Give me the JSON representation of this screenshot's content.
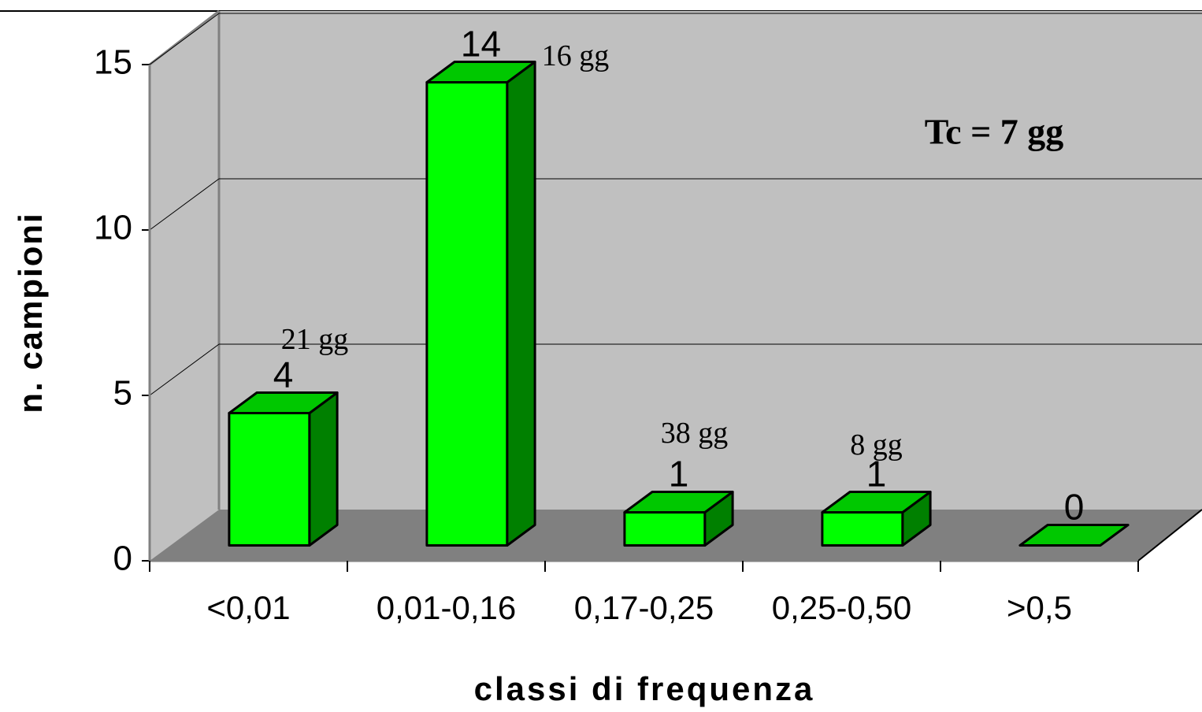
{
  "chart_data": {
    "type": "bar3d",
    "categories": [
      "<0,01",
      "0,01-0,16",
      "0,17-0,25",
      "0,25-0,50",
      ">0,5"
    ],
    "values": [
      4,
      14,
      1,
      1,
      0
    ],
    "bar_notes": [
      "21 gg",
      "16 gg",
      "38 gg",
      "8 gg",
      null
    ],
    "note": "Tc = 7 gg",
    "xlabel": "classi di frequenza",
    "ylabel": "n. campioni",
    "ylim": [
      0,
      15
    ],
    "yticks": [
      0,
      5,
      10,
      15
    ],
    "grid": true,
    "colors": {
      "front": "#00ff00",
      "top": "#00c800",
      "side": "#008000"
    }
  }
}
